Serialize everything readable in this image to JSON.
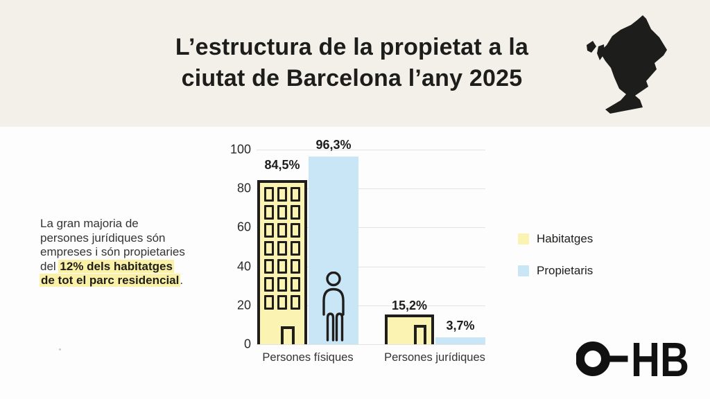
{
  "header": {
    "title_line1": "L’estructura de la propietat a la",
    "title_line2": "ciutat de Barcelona l’any 2025"
  },
  "note": {
    "line1": "La gran majoria de",
    "line2": "persones jurídiques són",
    "line3": "empreses i són propietaries",
    "line4_prefix": "del ",
    "line4_highlight": "12% dels habitatges",
    "line5_highlight": "de tot el parc residencial",
    "line5_suffix": "."
  },
  "chart_data": {
    "type": "bar",
    "categories": [
      "Persones físiques",
      "Persones jurídiques"
    ],
    "series": [
      {
        "name": "Habitatges",
        "color": "#FAF3B1",
        "values": [
          84.5,
          15.2
        ],
        "labels": [
          "84,5%",
          "15,2%"
        ]
      },
      {
        "name": "Propietaris",
        "color": "#C9E6F6",
        "values": [
          96.3,
          3.7
        ],
        "labels": [
          "96,3%",
          "3,7%"
        ]
      }
    ],
    "unit": "%",
    "ylim": [
      0,
      100
    ],
    "y_ticks": [
      0,
      20,
      40,
      60,
      80,
      100
    ],
    "grid": true,
    "legend_position": "right",
    "xlabel": "",
    "ylabel": ""
  },
  "logo": {
    "hb": "HB"
  },
  "colors": {
    "header_bg": "#F2F0E9",
    "page_bg": "#FDFDFD",
    "highlight": "#FAF1A7",
    "ink": "#1F1E1C",
    "grid": "#E3E3E3"
  }
}
